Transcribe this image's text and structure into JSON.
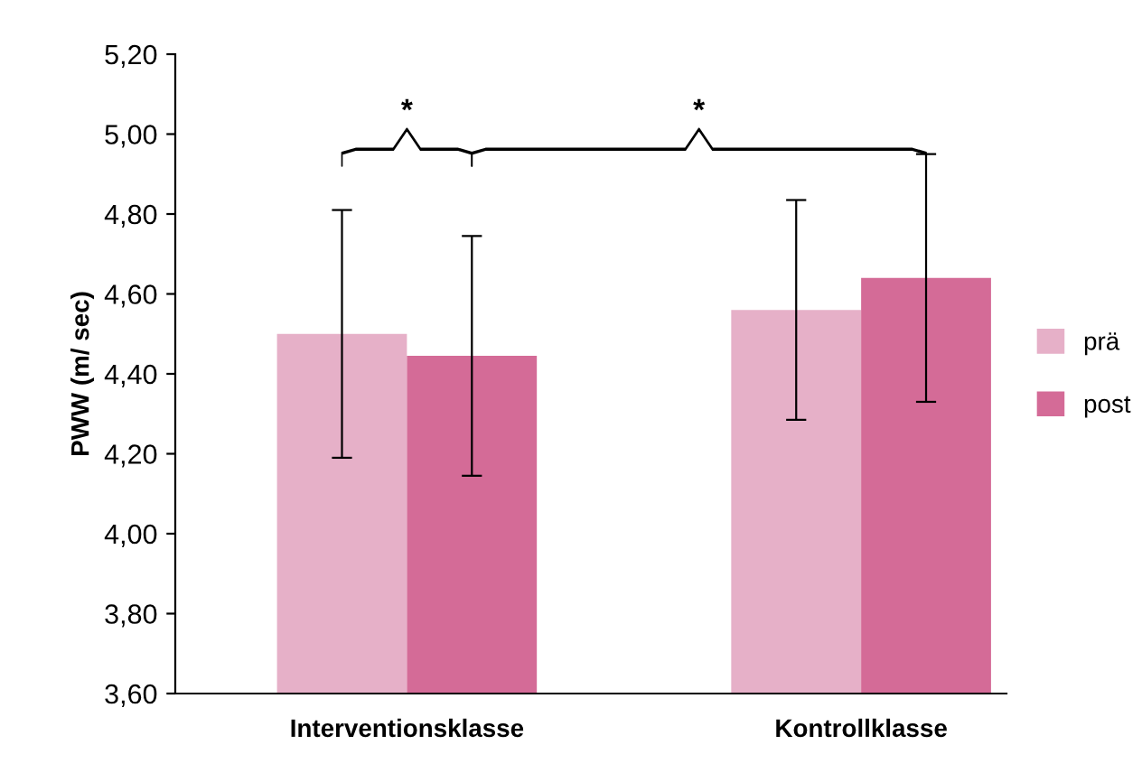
{
  "chart_data": {
    "type": "bar",
    "ylabel": "PWW (m/ sec)",
    "categories": [
      "Interventionsklasse",
      "Kontrollklasse"
    ],
    "series": [
      {
        "name": "prä",
        "color": "#e6b0c8",
        "values": [
          4.5,
          4.56
        ],
        "errors": [
          0.31,
          0.275
        ]
      },
      {
        "name": "post",
        "color": "#d46b97",
        "values": [
          4.445,
          4.64
        ],
        "errors": [
          0.3,
          0.31
        ]
      }
    ],
    "ylim": [
      3.6,
      5.2
    ],
    "yticks": [
      {
        "value": 3.6,
        "label": "3,60"
      },
      {
        "value": 3.8,
        "label": "3,80"
      },
      {
        "value": 4.0,
        "label": "4,00"
      },
      {
        "value": 4.2,
        "label": "4,20"
      },
      {
        "value": 4.4,
        "label": "4,40"
      },
      {
        "value": 4.6,
        "label": "4,60"
      },
      {
        "value": 4.8,
        "label": "4,80"
      },
      {
        "value": 5.0,
        "label": "5,00"
      },
      {
        "value": 5.2,
        "label": "5,20"
      }
    ],
    "annotations": [
      "*",
      "*"
    ],
    "grid": false,
    "legend": "right"
  }
}
